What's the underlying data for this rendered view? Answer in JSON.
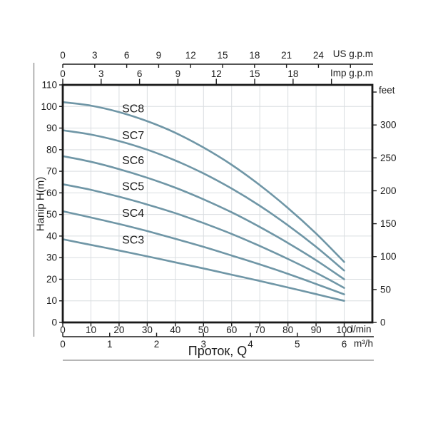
{
  "chart_data": {
    "type": "line",
    "title": "",
    "xlabel": "Проток, Q",
    "ylabel": "Напір H(m)",
    "grid": true,
    "curve_color": "#6f96a6",
    "grid_color": "#d9dde0",
    "axis_color": "#1c1c1c",
    "frame_line_color": "#8a8a8a",
    "x_range_lmin": [
      0,
      110
    ],
    "y_range_m": [
      0,
      110
    ],
    "axes": {
      "top_us": {
        "label": "US g.p.m",
        "ticks": [
          0,
          3,
          6,
          9,
          12,
          15,
          18,
          21,
          24
        ],
        "tick_marks": [
          0,
          3,
          6,
          9,
          12,
          15,
          18,
          21,
          24,
          27
        ],
        "lmin_per_unit": 3.78541
      },
      "top_imp": {
        "label": "Imp g.p.m",
        "ticks": [
          0,
          3,
          6,
          9,
          12,
          15,
          18
        ],
        "tick_marks": [
          0,
          3,
          6,
          9,
          12,
          15,
          18,
          21
        ],
        "lmin_per_unit": 4.54609
      },
      "left_m": {
        "label": "Напір H(m)",
        "ticks": [
          0,
          10,
          20,
          30,
          40,
          50,
          60,
          70,
          80,
          90,
          100,
          110
        ]
      },
      "right_feet": {
        "label": "feet",
        "ticks": [
          0,
          50,
          100,
          150,
          200,
          250,
          300
        ],
        "tick_marks": [
          0,
          50,
          100,
          150,
          200,
          250,
          300,
          350
        ],
        "m_per_unit": 0.3048
      },
      "bottom_lmin": {
        "label": "l/min",
        "ticks": [
          0,
          10,
          20,
          30,
          40,
          50,
          60,
          70,
          80,
          90,
          100
        ]
      },
      "bottom_m3h": {
        "label": "m³/h",
        "ticks": [
          0,
          1,
          2,
          3,
          4,
          5,
          6
        ],
        "lmin_per_unit": 16.6667
      }
    },
    "x_lmin": [
      0,
      10,
      20,
      30,
      40,
      50,
      60,
      70,
      80,
      90,
      100
    ],
    "series": [
      {
        "name": "SC8",
        "label_h": 99,
        "values_m": [
          102,
          100.4,
          97.4,
          93.2,
          87.8,
          81,
          73,
          63.6,
          53,
          41.2,
          28
        ]
      },
      {
        "name": "SC7",
        "label_h": 86.5,
        "values_m": [
          89,
          87,
          84,
          80,
          75,
          69,
          62,
          54,
          45,
          35,
          24
        ]
      },
      {
        "name": "SC6",
        "label_h": 75,
        "values_m": [
          77,
          74.4,
          71,
          67,
          62.4,
          57,
          51,
          44.2,
          36.8,
          28.8,
          20
        ]
      },
      {
        "name": "SC5",
        "label_h": 63,
        "values_m": [
          64,
          61.4,
          58.2,
          54.6,
          50.6,
          46,
          41,
          35.4,
          29.4,
          23,
          16
        ]
      },
      {
        "name": "SC4",
        "label_h": 50.5,
        "values_m": [
          51.5,
          48.6,
          45.6,
          42.3,
          38.7,
          35,
          31,
          26.9,
          22.5,
          17.8,
          13
        ]
      },
      {
        "name": "SC3",
        "label_h": 38.2,
        "values_m": [
          38.5,
          35.9,
          33.3,
          30.6,
          27.8,
          25,
          22.1,
          19.2,
          16.2,
          13.1,
          10
        ]
      }
    ]
  }
}
